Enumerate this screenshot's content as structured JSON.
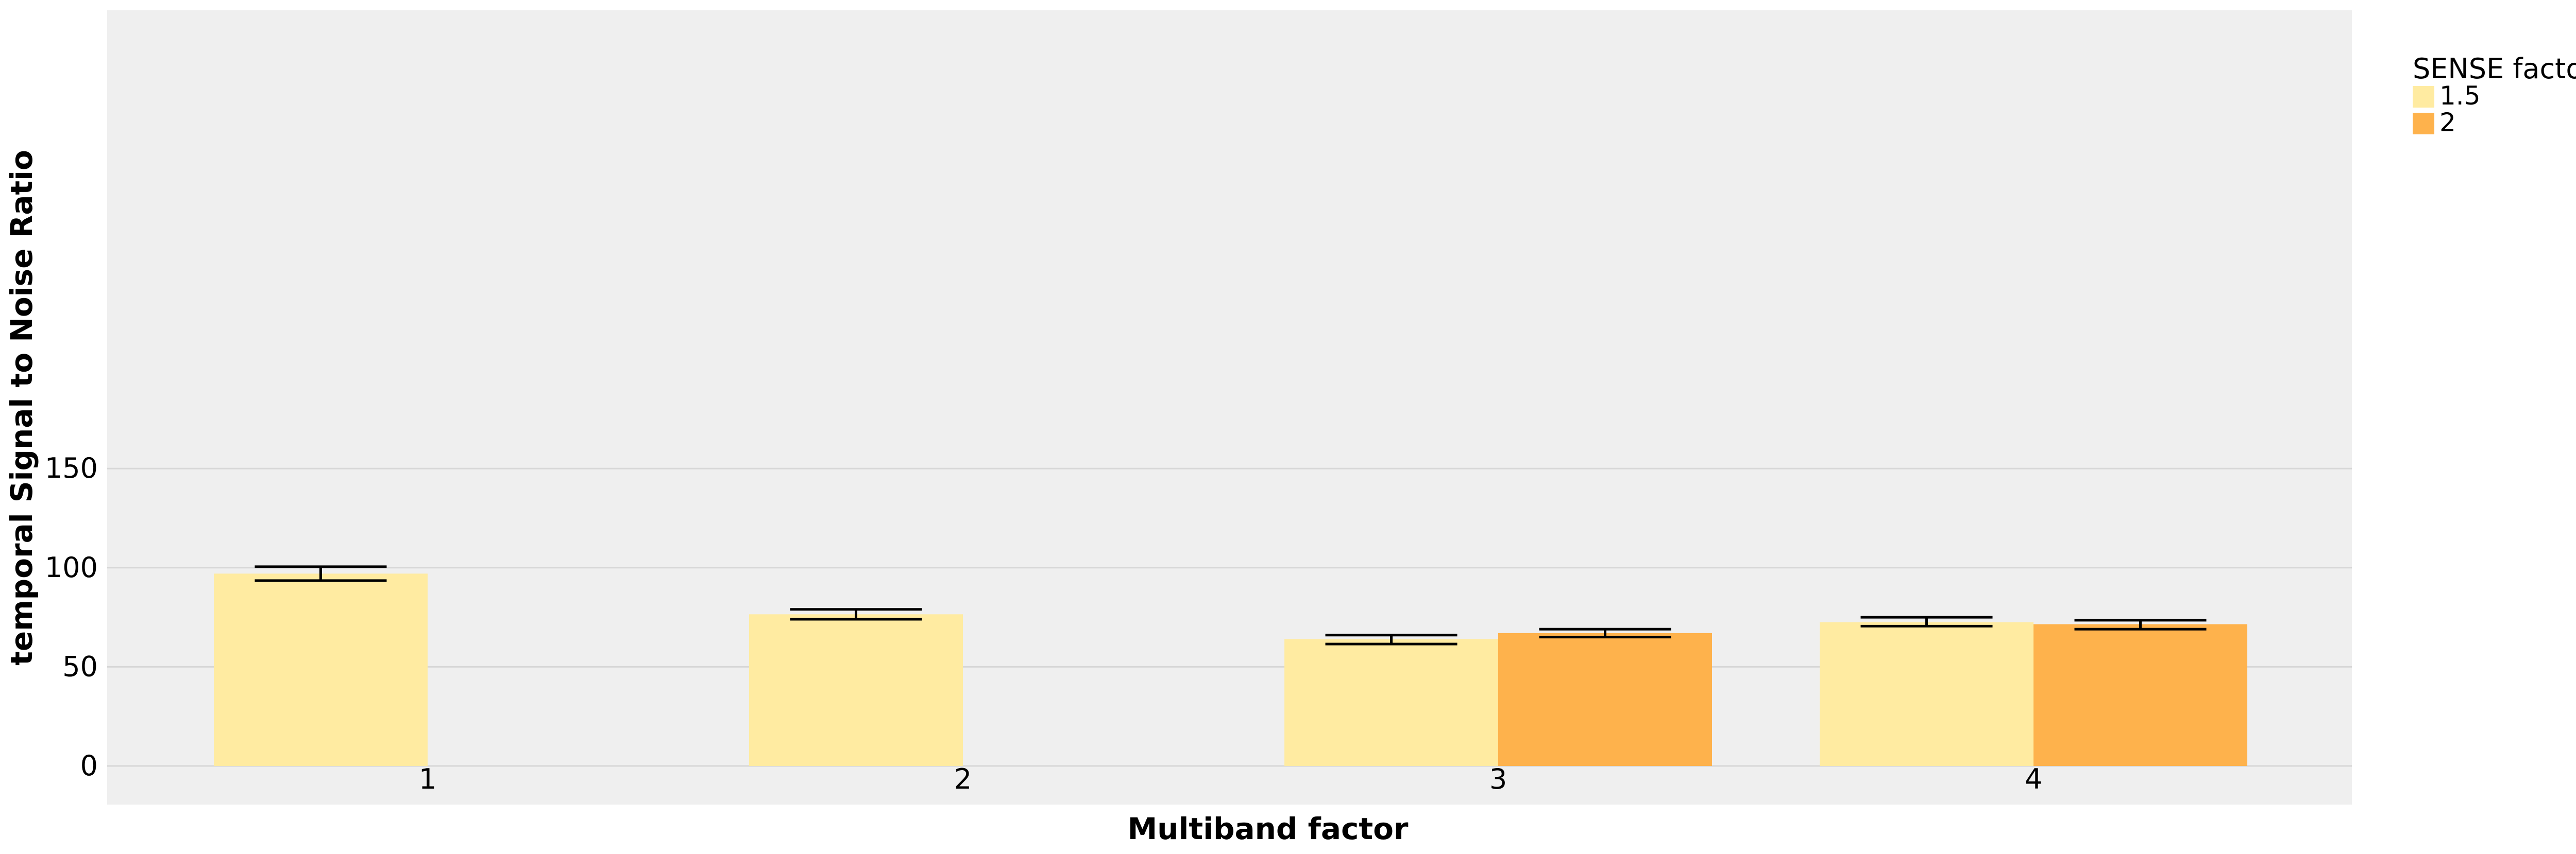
{
  "chart_data": {
    "type": "bar",
    "title": "",
    "xlabel": "Multiband factor",
    "ylabel": "temporal Signal to Noise Ratio",
    "categories": [
      "1",
      "2",
      "3",
      "4"
    ],
    "yticks": [
      "0",
      "50",
      "100",
      "150"
    ],
    "ylim": [
      0,
      150
    ],
    "grid": true,
    "legend": {
      "title": "SENSE factor",
      "placement": "right"
    },
    "series": [
      {
        "name": "1.5",
        "color": "#FFEBA1",
        "values": [
          97,
          76.5,
          64,
          72.5
        ],
        "error_low": [
          93.5,
          74,
          61.5,
          70.5
        ],
        "error_high": [
          100.5,
          79,
          66,
          75
        ]
      },
      {
        "name": "2",
        "color": "#FEB24C",
        "values": [
          null,
          null,
          67,
          71.5
        ],
        "error_low": [
          null,
          null,
          65,
          69
        ],
        "error_high": [
          null,
          null,
          69,
          73.5
        ]
      }
    ]
  },
  "colors": {
    "panel": "#EFEFEF",
    "grid": "#D7D7D7",
    "error_bar": "#000000"
  }
}
